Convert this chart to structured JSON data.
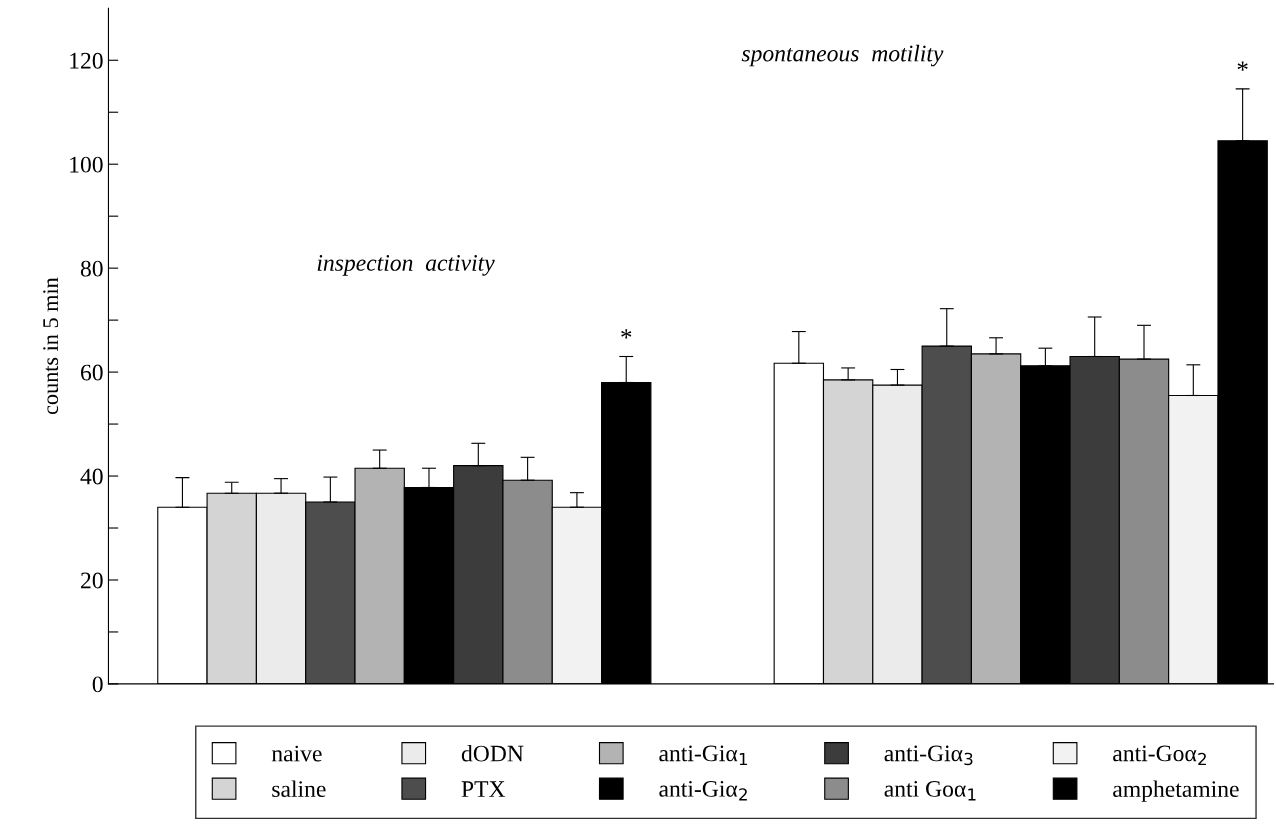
{
  "chart_data": {
    "type": "bar",
    "ylabel": "counts in 5 min",
    "categories": [
      null,
      null
    ],
    "ylim": [
      0,
      130
    ],
    "yticks": [
      0,
      {
        "value": 10,
        "label": null
      },
      20,
      {
        "value": 30,
        "label": null
      },
      40,
      {
        "value": 50,
        "label": null
      },
      60,
      {
        "value": 70,
        "label": null
      },
      80,
      {
        "value": 90,
        "label": null
      },
      100,
      {
        "value": 110,
        "label": null
      },
      120
    ],
    "tick_labels": "y",
    "grid": false,
    "legend": "bottom",
    "annotations": [
      "inspection  activity",
      "spontaneous  motility"
    ],
    "series": [
      {
        "name": "naive",
        "color": "#ffffff",
        "values": [
          34,
          61.7
        ],
        "errors": [
          [
            34,
            39.7
          ],
          [
            61.7,
            67.8
          ]
        ]
      },
      {
        "name": "saline",
        "color": "#d4d4d4",
        "values": [
          36.7,
          58.5
        ],
        "errors": [
          [
            36.7,
            38.8
          ],
          [
            58.5,
            60.8
          ]
        ]
      },
      {
        "name": "dODN",
        "color": "#ebebeb",
        "values": [
          36.7,
          57.5
        ],
        "errors": [
          [
            36.7,
            39.5
          ],
          [
            57.5,
            60.5
          ]
        ]
      },
      {
        "name": "PTX",
        "color": "#4d4d4d",
        "values": [
          35,
          65
        ],
        "errors": [
          [
            35,
            39.8
          ],
          [
            65,
            72.2
          ]
        ]
      },
      {
        "name": "anti-Giα$_{1}$",
        "color": "#b3b3b3",
        "values": [
          41.5,
          63.5
        ],
        "errors": [
          [
            41.5,
            45
          ],
          [
            63.5,
            66.6
          ]
        ]
      },
      {
        "name": "anti-Giα$_{2}$",
        "color": "#000000",
        "values": [
          37.8,
          61.2
        ],
        "errors": [
          [
            37.8,
            41.5
          ],
          [
            61.2,
            64.6
          ]
        ]
      },
      {
        "name": "anti-Giα$_{3}$",
        "color": "#3c3c3c",
        "values": [
          42,
          63
        ],
        "errors": [
          [
            42,
            46.3
          ],
          [
            63,
            70.6
          ]
        ]
      },
      {
        "name": "anti Goα$_{1}$",
        "color": "#8c8c8c",
        "values": [
          39.2,
          62.5
        ],
        "errors": [
          [
            39.2,
            43.6
          ],
          [
            62.5,
            69
          ]
        ]
      },
      {
        "name": "anti-Goα$_{2}$",
        "color": "#f2f2f2",
        "values": [
          34,
          55.5
        ],
        "errors": [
          [
            34,
            36.8
          ],
          [
            55.5,
            61.4
          ]
        ]
      },
      {
        "name": "amphetamine",
        "color": "#000000",
        "values": [
          58,
          104.5
        ],
        "errors": [
          [
            58,
            63
          ],
          [
            104.5,
            114.5
          ]
        ],
        "value_labels": [
          "*",
          "*"
        ]
      }
    ]
  }
}
